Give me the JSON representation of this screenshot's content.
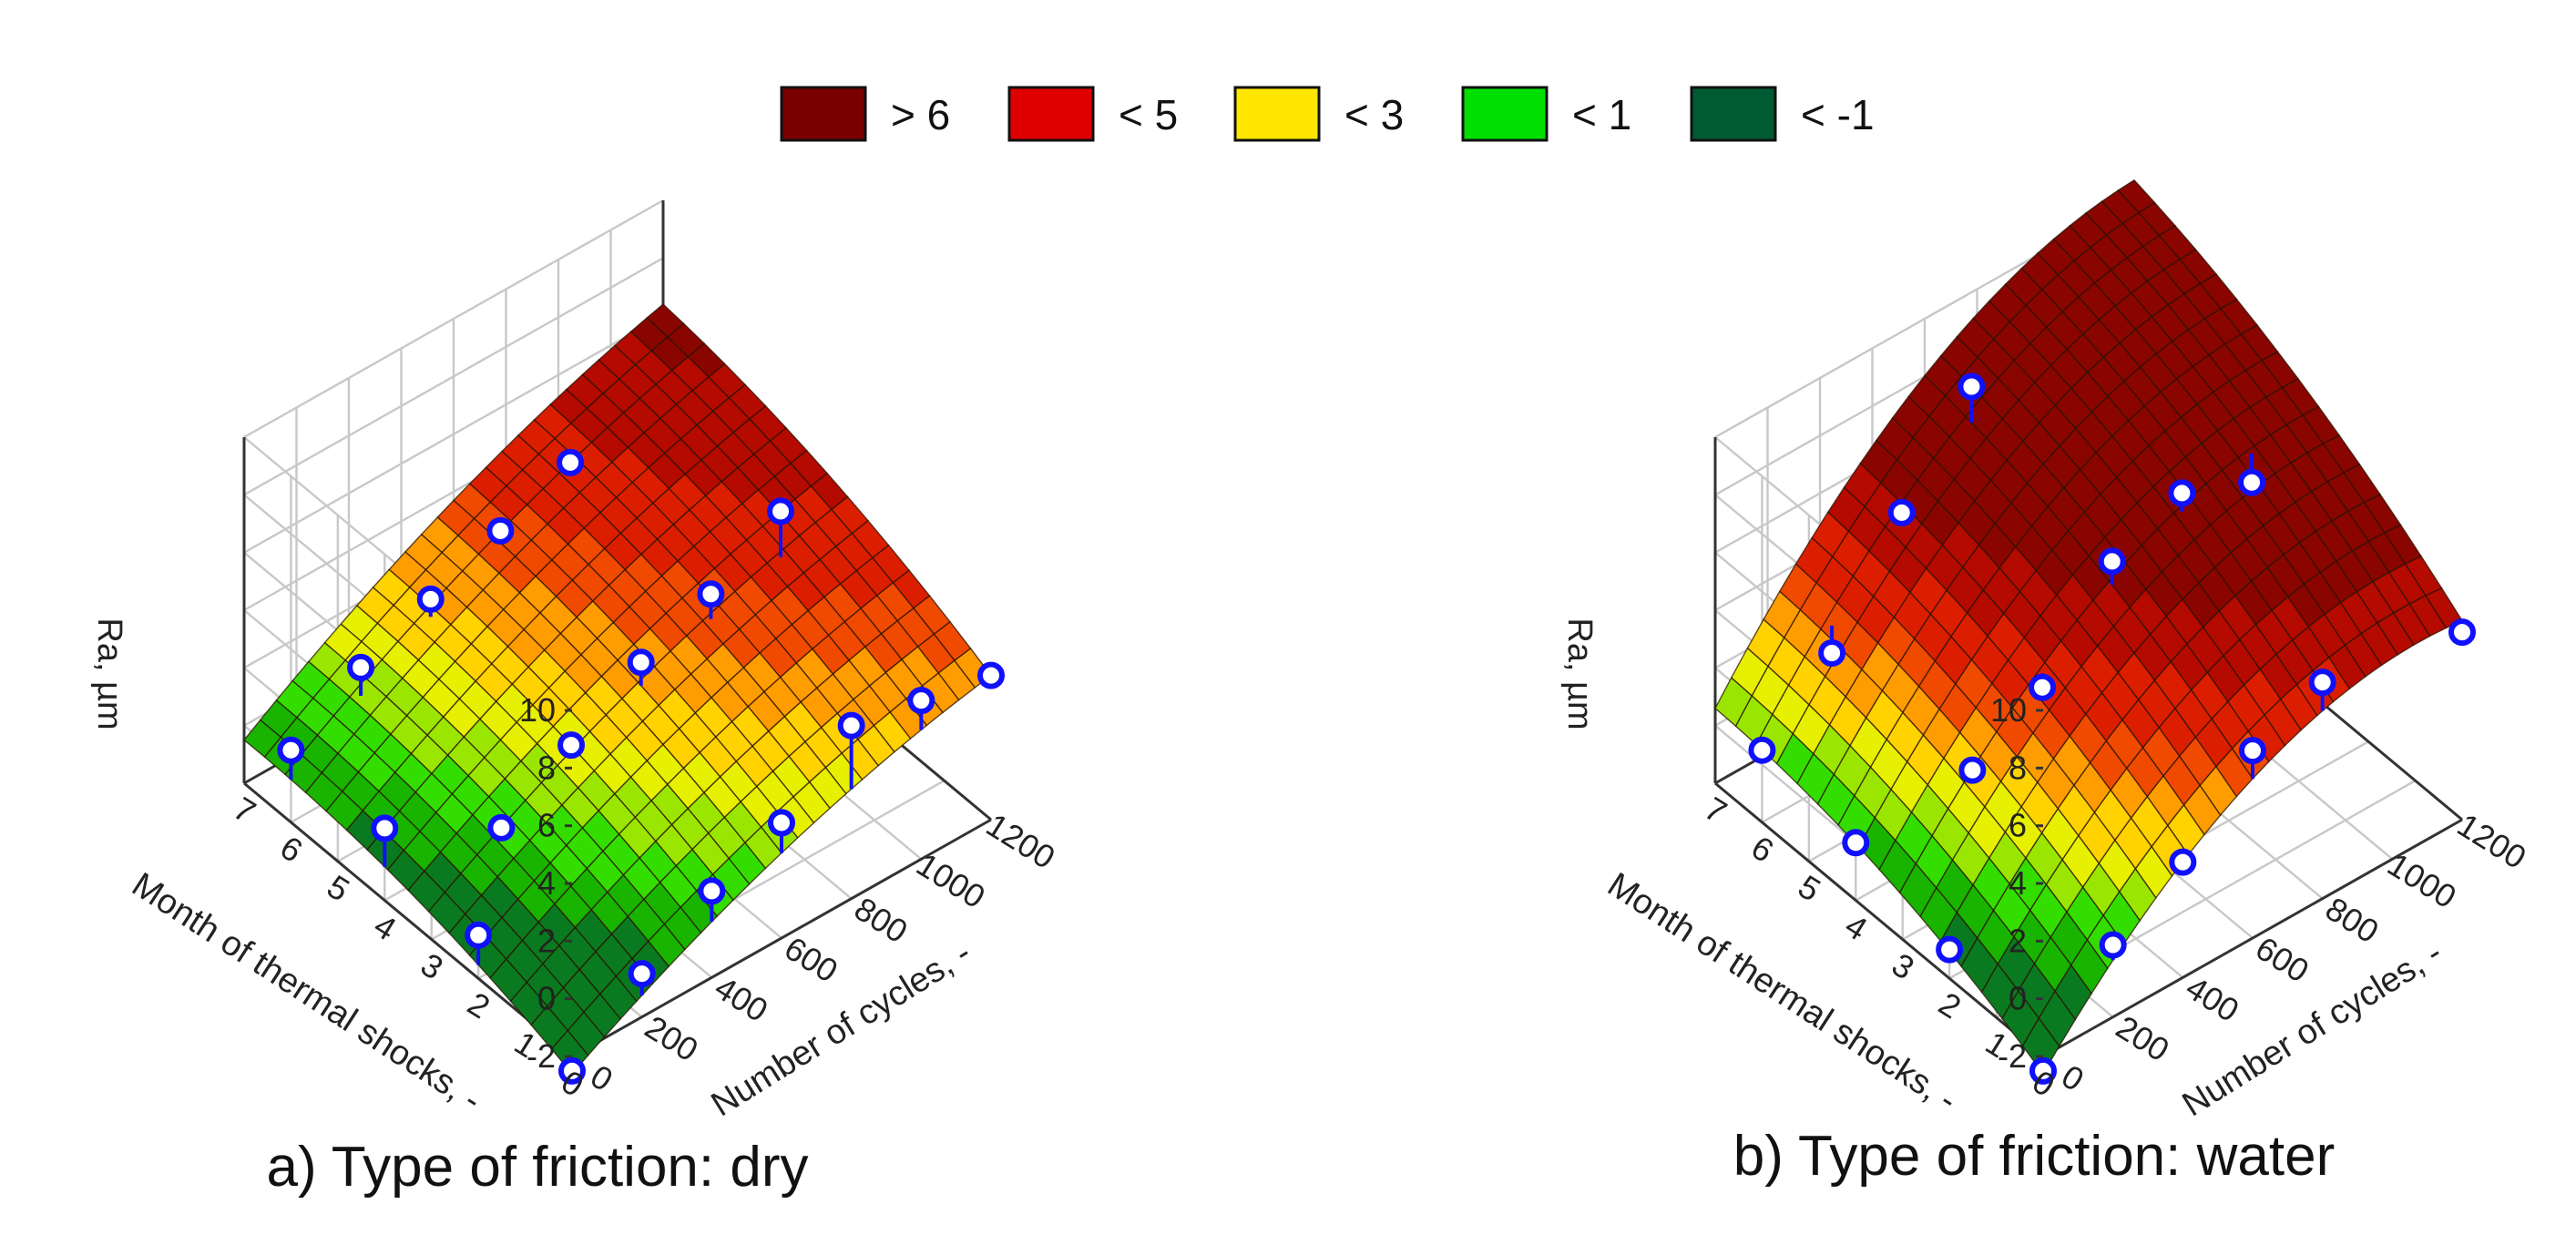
{
  "legend": {
    "items": [
      {
        "label": "> 6",
        "color": "#7a0000"
      },
      {
        "label": "< 5",
        "color": "#e00000"
      },
      {
        "label": "< 3",
        "color": "#ffe600"
      },
      {
        "label": "< 1",
        "color": "#00e000"
      },
      {
        "label": "< -1",
        "color": "#005a32"
      }
    ]
  },
  "chart_data": [
    {
      "type": "surface3d",
      "title": "a) Type of friction: dry",
      "zlabel": "Ra, µm",
      "ylabel": "Month of thermal shocks, -",
      "xlabel": "Number of cycles, -",
      "zlim": [
        -2,
        10
      ],
      "z_ticks": [
        "10",
        "8",
        "6",
        "4",
        "2",
        "0",
        "-2"
      ],
      "month_ticks": [
        "7",
        "6",
        "5",
        "4",
        "3",
        "2",
        "1",
        "0"
      ],
      "cycle_ticks": [
        "0",
        "200",
        "400",
        "600",
        "800",
        "1000",
        "1200"
      ],
      "marker_color": "#1010ff",
      "points": [
        {
          "cycles": 0,
          "month": 0,
          "ra": -2.5
        },
        {
          "cycles": 0,
          "month": 2,
          "ra": -0.5
        },
        {
          "cycles": 0,
          "month": 4,
          "ra": 0.5
        },
        {
          "cycles": 0,
          "month": 6,
          "ra": 0.5
        },
        {
          "cycles": 200,
          "month": 0,
          "ra": -0.5
        },
        {
          "cycles": 200,
          "month": 3,
          "ra": 0.5
        },
        {
          "cycles": 200,
          "month": 6,
          "ra": 2.0
        },
        {
          "cycles": 400,
          "month": 0,
          "ra": 1.0
        },
        {
          "cycles": 400,
          "month": 3,
          "ra": 2.0
        },
        {
          "cycles": 400,
          "month": 6,
          "ra": 3.0
        },
        {
          "cycles": 600,
          "month": 0,
          "ra": 2.0
        },
        {
          "cycles": 600,
          "month": 3,
          "ra": 3.5
        },
        {
          "cycles": 600,
          "month": 6,
          "ra": 4.0
        },
        {
          "cycles": 800,
          "month": 0,
          "ra": 4.0
        },
        {
          "cycles": 800,
          "month": 3,
          "ra": 4.5
        },
        {
          "cycles": 800,
          "month": 6,
          "ra": 5.0
        },
        {
          "cycles": 1000,
          "month": 0,
          "ra": 3.5
        },
        {
          "cycles": 1000,
          "month": 3,
          "ra": 6.0
        },
        {
          "cycles": 1200,
          "month": 0,
          "ra": 3.0
        }
      ]
    },
    {
      "type": "surface3d",
      "title": "b) Type of friction: water",
      "zlabel": "Ra, µm",
      "ylabel": "Month of thermal shocks, -",
      "xlabel": "Number of cycles, -",
      "zlim": [
        -2,
        10
      ],
      "z_ticks": [
        "10",
        "8",
        "6",
        "4",
        "2",
        "0",
        "-2"
      ],
      "month_ticks": [
        "7",
        "6",
        "5",
        "4",
        "3",
        "2",
        "1",
        "0"
      ],
      "cycle_ticks": [
        "0",
        "200",
        "400",
        "600",
        "800",
        "1000",
        "1200"
      ],
      "marker_color": "#1010ff",
      "points": [
        {
          "cycles": 0,
          "month": 0,
          "ra": -2.5
        },
        {
          "cycles": 0,
          "month": 2,
          "ra": -1.0
        },
        {
          "cycles": 0,
          "month": 4,
          "ra": 0.0
        },
        {
          "cycles": 0,
          "month": 6,
          "ra": 0.5
        },
        {
          "cycles": 200,
          "month": 0,
          "ra": 0.5
        },
        {
          "cycles": 200,
          "month": 3,
          "ra": 2.5
        },
        {
          "cycles": 200,
          "month": 6,
          "ra": 2.5
        },
        {
          "cycles": 400,
          "month": 0,
          "ra": 2.0
        },
        {
          "cycles": 400,
          "month": 3,
          "ra": 4.0
        },
        {
          "cycles": 400,
          "month": 6,
          "ra": 6.0
        },
        {
          "cycles": 600,
          "month": 0,
          "ra": 4.5
        },
        {
          "cycles": 600,
          "month": 3,
          "ra": 7.0
        },
        {
          "cycles": 600,
          "month": 6,
          "ra": 9.0
        },
        {
          "cycles": 800,
          "month": 0,
          "ra": 5.5
        },
        {
          "cycles": 800,
          "month": 3,
          "ra": 8.0
        },
        {
          "cycles": 1000,
          "month": 3,
          "ra": 7.0
        },
        {
          "cycles": 1200,
          "month": 0,
          "ra": 4.5
        }
      ]
    }
  ]
}
